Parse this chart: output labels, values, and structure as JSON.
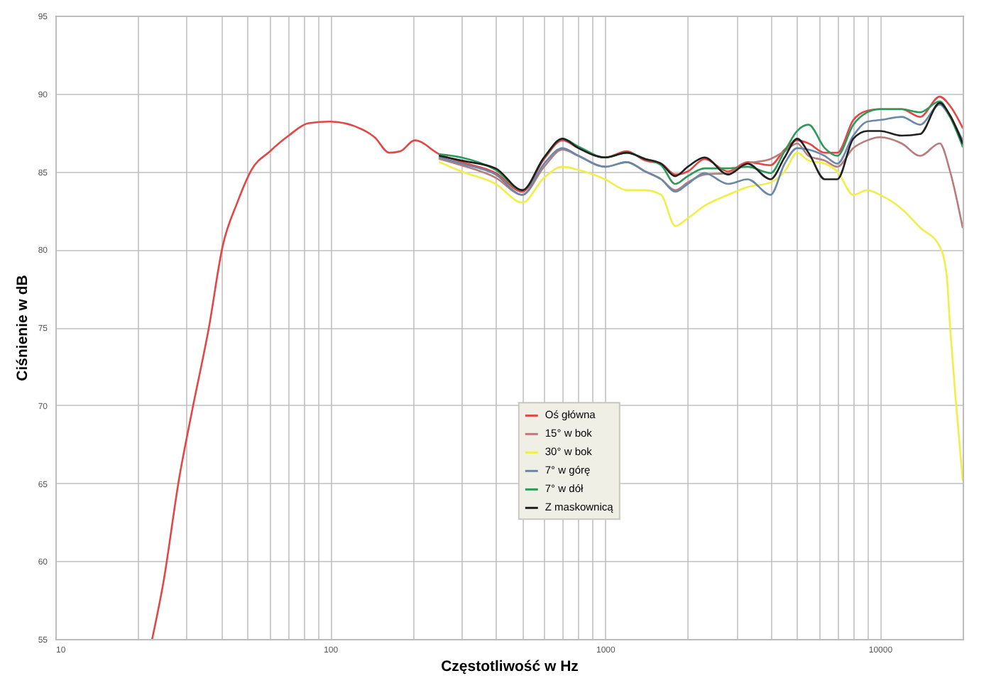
{
  "chart_data": {
    "type": "line",
    "xlabel": "Częstotliwość w Hz",
    "ylabel": "Ciśnienie w dB",
    "log": "x",
    "grid": true,
    "legend": "bottom",
    "marker": "none",
    "line_style": "solid",
    "xlim": [
      10,
      20000
    ],
    "ylim": [
      55,
      95
    ],
    "xticks": [
      10,
      {
        "value": 20,
        "label": null
      },
      {
        "value": 30,
        "label": null
      },
      {
        "value": 40,
        "label": null
      },
      {
        "value": 50,
        "label": null
      },
      {
        "value": 60,
        "label": null
      },
      {
        "value": 70,
        "label": null
      },
      {
        "value": 80,
        "label": null
      },
      {
        "value": 90,
        "label": null
      },
      100,
      {
        "value": 200,
        "label": null
      },
      {
        "value": 300,
        "label": null
      },
      {
        "value": 400,
        "label": null
      },
      {
        "value": 500,
        "label": null
      },
      {
        "value": 600,
        "label": null
      },
      {
        "value": 700,
        "label": null
      },
      {
        "value": 800,
        "label": null
      },
      {
        "value": 900,
        "label": null
      },
      1000,
      {
        "value": 2000,
        "label": null
      },
      {
        "value": 3000,
        "label": null
      },
      {
        "value": 4000,
        "label": null
      },
      {
        "value": 5000,
        "label": null
      },
      {
        "value": 6000,
        "label": null
      },
      {
        "value": 7000,
        "label": null
      },
      {
        "value": 8000,
        "label": null
      },
      {
        "value": 9000,
        "label": null
      },
      10000,
      {
        "value": 20000,
        "label": null
      }
    ],
    "yticks": [
      55,
      60,
      65,
      70,
      75,
      80,
      85,
      90,
      95
    ],
    "x": [
      250,
      300,
      400,
      500,
      600,
      700,
      800,
      1000,
      1200,
      1400,
      1600,
      1800,
      2000,
      2300,
      2800,
      3300,
      4000,
      4500,
      5000,
      5500,
      6300,
      7000,
      8000,
      9000,
      10000,
      12000,
      14000,
      16500,
      18000,
      20000
    ],
    "series": [
      {
        "name": "Oś główna",
        "color": "#e04848",
        "x": [
          22.5,
          24.7,
          28.2,
          31.4,
          36.2,
          40.6,
          45.9,
          51.7,
          60.4,
          70.6,
          83.4,
          100,
          134,
          145,
          164,
          180,
          203,
          250,
          300,
          400,
          500,
          600,
          700,
          800,
          1000,
          1200,
          1400,
          1600,
          1800,
          2000,
          2300,
          2800,
          3300,
          4000,
          4500,
          5000,
          5500,
          6300,
          7000,
          8000,
          9000,
          10000,
          12000,
          14000,
          16500,
          18000,
          20000
        ],
        "values": [
          55,
          58.6,
          65.3,
          69.6,
          75,
          80.2,
          83,
          85.1,
          86.3,
          87.3,
          88.1,
          88.2,
          87.6,
          87.2,
          86.2,
          86.3,
          87.0,
          86.1,
          85.6,
          84.9,
          83.7,
          85.8,
          87.0,
          86.5,
          85.9,
          86.3,
          85.7,
          85.5,
          84.8,
          85.0,
          85.8,
          85.0,
          85.6,
          85.4,
          86.4,
          87.0,
          86.8,
          86.2,
          86.2,
          88.3,
          88.9,
          89.0,
          89.0,
          88.5,
          89.8,
          89.2,
          87.8
        ]
      },
      {
        "name": "15° w bok",
        "color": "#b87c7c",
        "values": [
          85.8,
          85.4,
          84.6,
          83.5,
          85.3,
          86.4,
          86.0,
          85.3,
          85.6,
          85.0,
          84.5,
          83.8,
          84.3,
          84.8,
          84.9,
          85.5,
          85.8,
          86.3,
          86.8,
          86.0,
          85.7,
          85.3,
          86.5,
          87.0,
          87.2,
          86.8,
          86.0,
          86.8,
          85.0,
          81.4
        ]
      },
      {
        "name": "30° w bok",
        "color": "#f0ee48",
        "x": [
          250,
          300,
          400,
          500,
          600,
          700,
          800,
          1000,
          1200,
          1400,
          1600,
          1800,
          2000,
          2300,
          2800,
          3300,
          4000,
          4500,
          5000,
          5500,
          6300,
          7000,
          8000,
          9000,
          10000,
          12000,
          14000,
          16500,
          17500,
          18000,
          18840,
          20000
        ],
        "values": [
          85.6,
          85.0,
          84.2,
          83.0,
          84.6,
          85.3,
          85.1,
          84.5,
          83.8,
          83.8,
          83.5,
          81.5,
          82.0,
          82.8,
          83.5,
          84.0,
          84.3,
          85.0,
          86.2,
          85.7,
          85.5,
          85.0,
          83.5,
          83.8,
          83.5,
          82.6,
          81.4,
          80.2,
          78.3,
          75.0,
          70.5,
          65.2
        ]
      },
      {
        "name": "7° w górę",
        "color": "#6a88a8",
        "values": [
          85.9,
          85.5,
          84.8,
          83.5,
          85.5,
          86.5,
          86.0,
          85.3,
          85.6,
          85.0,
          84.5,
          83.7,
          84.2,
          84.9,
          84.2,
          84.5,
          83.5,
          85.5,
          86.5,
          86.4,
          86.0,
          85.5,
          87.3,
          88.2,
          88.3,
          88.5,
          88.0,
          89.3,
          88.5,
          87.0
        ]
      },
      {
        "name": "7° w dół",
        "color": "#2e9a5a",
        "values": [
          86.1,
          85.9,
          85.1,
          83.8,
          85.9,
          87.1,
          86.6,
          85.9,
          86.2,
          85.8,
          85.4,
          84.2,
          84.7,
          85.2,
          85.2,
          85.3,
          84.9,
          86.3,
          87.6,
          88.0,
          86.5,
          86.0,
          88.0,
          88.8,
          89.0,
          89.0,
          88.8,
          89.5,
          88.5,
          86.6
        ]
      },
      {
        "name": "Z maskownicą",
        "color": "#202020",
        "values": [
          86.0,
          85.7,
          85.2,
          83.8,
          85.9,
          87.1,
          86.5,
          85.9,
          86.2,
          85.8,
          85.5,
          84.7,
          85.3,
          85.9,
          84.8,
          85.5,
          84.5,
          85.9,
          87.1,
          86.2,
          84.5,
          84.5,
          87.1,
          87.6,
          87.6,
          87.3,
          87.4,
          89.4,
          88.6,
          86.8
        ]
      }
    ]
  }
}
